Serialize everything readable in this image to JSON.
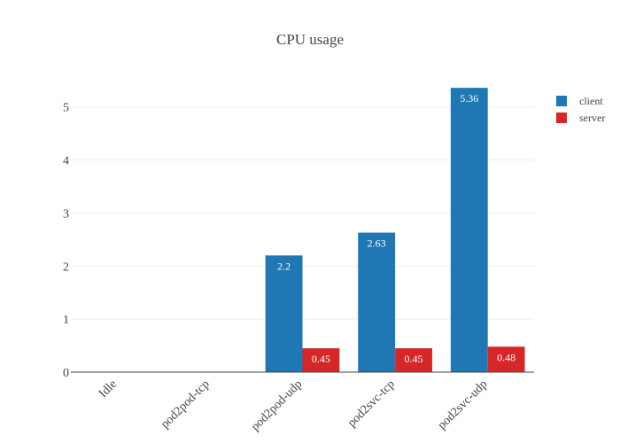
{
  "chart_data": {
    "type": "bar",
    "title": "CPU usage",
    "xlabel": "",
    "ylabel": "",
    "categories": [
      "Idle",
      "pod2pod-tcp",
      "pod2pod-udp",
      "pod2svc-tcp",
      "pod2svc-udp"
    ],
    "series": [
      {
        "name": "client",
        "color": "#1f77b4",
        "values": [
          0,
          0,
          2.2,
          2.63,
          5.36
        ],
        "labels": [
          "",
          "",
          "2.2",
          "2.63",
          "5.36"
        ]
      },
      {
        "name": "server",
        "color": "#d62728",
        "values": [
          0,
          0,
          0.45,
          0.45,
          0.48
        ],
        "labels": [
          "",
          "",
          "0.45",
          "0.45",
          "0.48"
        ]
      }
    ],
    "ylim": [
      0,
      5.68
    ],
    "yticks": [
      0,
      1,
      2,
      3,
      4,
      5
    ],
    "ytick_labels": [
      "0",
      "1",
      "2",
      "3",
      "4",
      "5"
    ],
    "grid": true,
    "legend_position": "top-right"
  }
}
